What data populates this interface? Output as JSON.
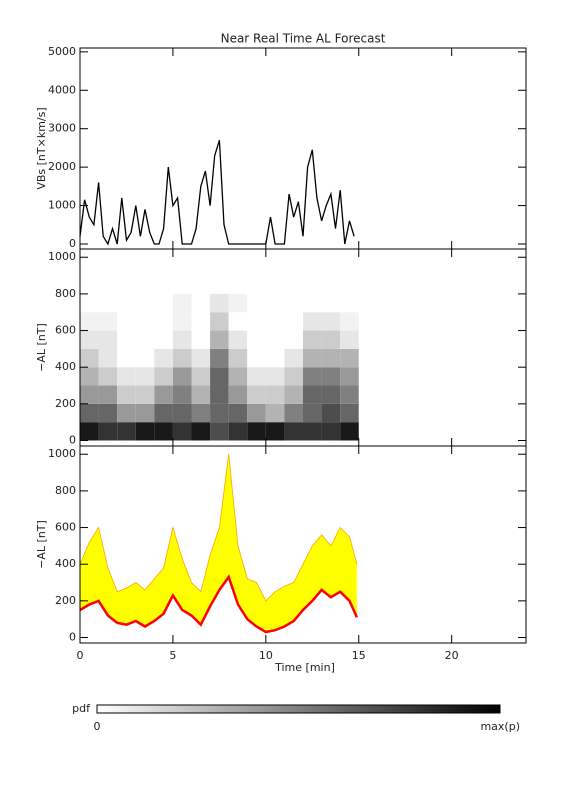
{
  "chart_data": [
    {
      "type": "line",
      "title": "Near Real Time AL Forecast",
      "ylabel": "VBs [nT×km/s]",
      "color": "#000000",
      "x": [
        0,
        0.25,
        0.5,
        0.75,
        1,
        1.25,
        1.5,
        1.75,
        2,
        2.25,
        2.5,
        2.75,
        3,
        3.25,
        3.5,
        3.75,
        4,
        4.25,
        4.5,
        4.75,
        5,
        5.25,
        5.5,
        6,
        6.25,
        6.5,
        6.75,
        7,
        7.25,
        7.5,
        7.75,
        8,
        8.5,
        9,
        9.5,
        10,
        10.25,
        10.5,
        11,
        11.25,
        11.5,
        11.75,
        12,
        12.25,
        12.5,
        12.75,
        13,
        13.25,
        13.5,
        13.75,
        14,
        14.25,
        14.5,
        14.75
      ],
      "values": [
        200,
        1150,
        700,
        500,
        1600,
        200,
        0,
        400,
        0,
        1200,
        100,
        300,
        1000,
        200,
        900,
        300,
        0,
        0,
        400,
        2000,
        1000,
        1200,
        0,
        0,
        400,
        1500,
        1900,
        1000,
        2300,
        2700,
        500,
        0,
        0,
        0,
        0,
        0,
        700,
        0,
        0,
        1300,
        700,
        1100,
        200,
        2000,
        2450,
        1200,
        600,
        1000,
        1300,
        400,
        1400,
        0,
        600,
        200
      ],
      "xlim": [
        0,
        24
      ],
      "xticks": [
        0,
        5,
        10,
        15,
        20
      ],
      "ylim": [
        -130,
        5100
      ],
      "yticks": [
        0,
        1000,
        2000,
        3000,
        4000,
        5000
      ]
    },
    {
      "type": "heatmap",
      "ylabel": "−AL [nT]",
      "x_bins": [
        0,
        1,
        2,
        3,
        4,
        5,
        6,
        7,
        8,
        9,
        10,
        11,
        12,
        13,
        14,
        15
      ],
      "y_bins": [
        0,
        100,
        200,
        300,
        400,
        500,
        600,
        700,
        800
      ],
      "values": [
        [
          0.9,
          0.8,
          0.8,
          0.9,
          0.9,
          0.8,
          0.9,
          0.7,
          0.8,
          0.9,
          0.9,
          0.8,
          0.8,
          0.8,
          0.9
        ],
        [
          0.6,
          0.6,
          0.4,
          0.4,
          0.6,
          0.6,
          0.5,
          0.6,
          0.6,
          0.4,
          0.3,
          0.5,
          0.6,
          0.7,
          0.6
        ],
        [
          0.4,
          0.4,
          0.2,
          0.2,
          0.4,
          0.5,
          0.3,
          0.6,
          0.4,
          0.2,
          0.2,
          0.3,
          0.6,
          0.6,
          0.5
        ],
        [
          0.3,
          0.2,
          0.1,
          0.1,
          0.2,
          0.4,
          0.2,
          0.6,
          0.3,
          0.1,
          0.1,
          0.2,
          0.5,
          0.5,
          0.4
        ],
        [
          0.2,
          0.1,
          0,
          0,
          0.1,
          0.2,
          0.1,
          0.5,
          0.2,
          0,
          0,
          0.1,
          0.3,
          0.3,
          0.3
        ],
        [
          0.1,
          0.1,
          0,
          0,
          0,
          0.1,
          0,
          0.3,
          0.1,
          0,
          0,
          0,
          0.2,
          0.2,
          0.1
        ],
        [
          0.05,
          0.05,
          0,
          0,
          0,
          0.05,
          0,
          0.2,
          0,
          0,
          0,
          0,
          0.1,
          0.1,
          0.05
        ],
        [
          0,
          0,
          0,
          0,
          0,
          0.05,
          0,
          0.1,
          0.05,
          0,
          0,
          0,
          0,
          0,
          0
        ]
      ],
      "xlim": [
        0,
        24
      ],
      "xticks": [
        0,
        5,
        10,
        15,
        20
      ],
      "ylim": [
        -30,
        1045
      ],
      "yticks": [
        0,
        200,
        400,
        600,
        800,
        1000
      ],
      "colorbar": {
        "label": "pdf",
        "min_label": "0",
        "max_label": "max(p)"
      }
    },
    {
      "type": "line",
      "ylabel": "−AL [nT]",
      "xlabel": "Time [min]",
      "fill_color": "#ffff00",
      "x": [
        0,
        0.5,
        1,
        1.5,
        2,
        2.5,
        3,
        3.5,
        4,
        4.5,
        5,
        5.5,
        6,
        6.5,
        7,
        7.5,
        8,
        8.5,
        9,
        9.5,
        10,
        10.5,
        11,
        11.5,
        12,
        12.5,
        13,
        13.5,
        14,
        14.5,
        14.9
      ],
      "series": [
        {
          "color": "#ff0000",
          "values": [
            150,
            180,
            200,
            120,
            80,
            70,
            90,
            60,
            90,
            130,
            230,
            150,
            120,
            70,
            170,
            260,
            330,
            180,
            100,
            60,
            30,
            40,
            60,
            90,
            150,
            200,
            260,
            220,
            250,
            200,
            110
          ]
        },
        {
          "color": "#ffa500",
          "values": [
            400,
            520,
            600,
            380,
            250,
            270,
            300,
            260,
            320,
            380,
            600,
            430,
            300,
            250,
            450,
            600,
            1000,
            500,
            320,
            300,
            200,
            250,
            280,
            300,
            400,
            500,
            560,
            500,
            600,
            550,
            400
          ]
        }
      ],
      "xlim": [
        0,
        24
      ],
      "xticks": [
        0,
        5,
        10,
        15,
        20
      ],
      "ylim": [
        -30,
        1045
      ],
      "yticks": [
        0,
        200,
        400,
        600,
        800,
        1000
      ]
    }
  ]
}
